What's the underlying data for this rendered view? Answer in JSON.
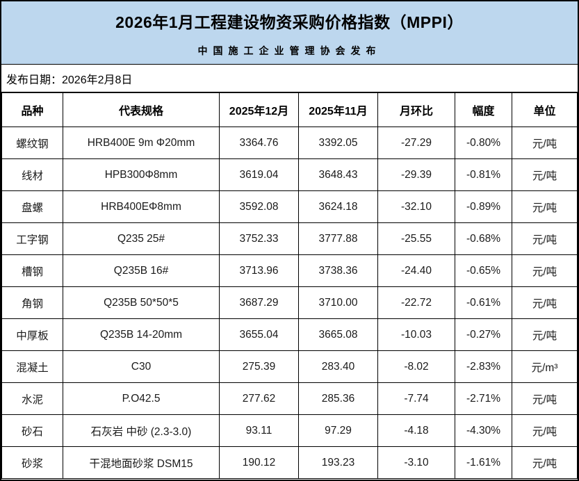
{
  "page": {
    "title": "2026年1月工程建设物资采购价格指数（MPPI）",
    "publisher": "中国施工企业管理协会发布",
    "publish_date_line": "发布日期：2026年2月8日"
  },
  "colors": {
    "header_background": "#BDD7EE",
    "decline_green": "#00B050",
    "border": "#000000"
  },
  "chart_data": {
    "type": "table",
    "title": "2026年1月工程建设物资采购价格指数（MPPI）",
    "subtitle": "中国施工企业管理协会发布",
    "publish_date": "2026年2月8日",
    "columns": [
      "品种",
      "代表规格",
      "2025年12月",
      "2025年11月",
      "月环比",
      "幅度",
      "单位"
    ],
    "rows": [
      {
        "variety": "螺纹钢",
        "spec": "HRB400E 9m Φ20mm",
        "price_2025_12": "3364.76",
        "price_2025_11": "3392.05",
        "mom_change": "-27.29",
        "mom_pct": "-0.80%",
        "unit": "元/吨"
      },
      {
        "variety": "线材",
        "spec": "HPB300Φ8mm",
        "price_2025_12": "3619.04",
        "price_2025_11": "3648.43",
        "mom_change": "-29.39",
        "mom_pct": "-0.81%",
        "unit": "元/吨"
      },
      {
        "variety": "盘螺",
        "spec": "HRB400EΦ8mm",
        "price_2025_12": "3592.08",
        "price_2025_11": "3624.18",
        "mom_change": "-32.10",
        "mom_pct": "-0.89%",
        "unit": "元/吨"
      },
      {
        "variety": "工字钢",
        "spec": "Q235 25#",
        "price_2025_12": "3752.33",
        "price_2025_11": "3777.88",
        "mom_change": "-25.55",
        "mom_pct": "-0.68%",
        "unit": "元/吨"
      },
      {
        "variety": "槽钢",
        "spec": "Q235B 16#",
        "price_2025_12": "3713.96",
        "price_2025_11": "3738.36",
        "mom_change": "-24.40",
        "mom_pct": "-0.65%",
        "unit": "元/吨"
      },
      {
        "variety": "角钢",
        "spec": "Q235B 50*50*5",
        "price_2025_12": "3687.29",
        "price_2025_11": "3710.00",
        "mom_change": "-22.72",
        "mom_pct": "-0.61%",
        "unit": "元/吨"
      },
      {
        "variety": "中厚板",
        "spec": "Q235B 14-20mm",
        "price_2025_12": "3655.04",
        "price_2025_11": "3665.08",
        "mom_change": "-10.03",
        "mom_pct": "-0.27%",
        "unit": "元/吨"
      },
      {
        "variety": "混凝土",
        "spec": "C30",
        "price_2025_12": "275.39",
        "price_2025_11": "283.40",
        "mom_change": "-8.02",
        "mom_pct": "-2.83%",
        "unit": "元/m³"
      },
      {
        "variety": "水泥",
        "spec": "P.O42.5",
        "price_2025_12": "277.62",
        "price_2025_11": "285.36",
        "mom_change": "-7.74",
        "mom_pct": "-2.71%",
        "unit": "元/吨"
      },
      {
        "variety": "砂石",
        "spec": "石灰岩 中砂 (2.3-3.0)",
        "price_2025_12": "93.11",
        "price_2025_11": "97.29",
        "mom_change": "-4.18",
        "mom_pct": "-4.30%",
        "unit": "元/吨"
      },
      {
        "variety": "砂浆",
        "spec": "干混地面砂浆 DSM15",
        "price_2025_12": "190.12",
        "price_2025_11": "193.23",
        "mom_change": "-3.10",
        "mom_pct": "-1.61%",
        "unit": "元/吨"
      }
    ]
  }
}
